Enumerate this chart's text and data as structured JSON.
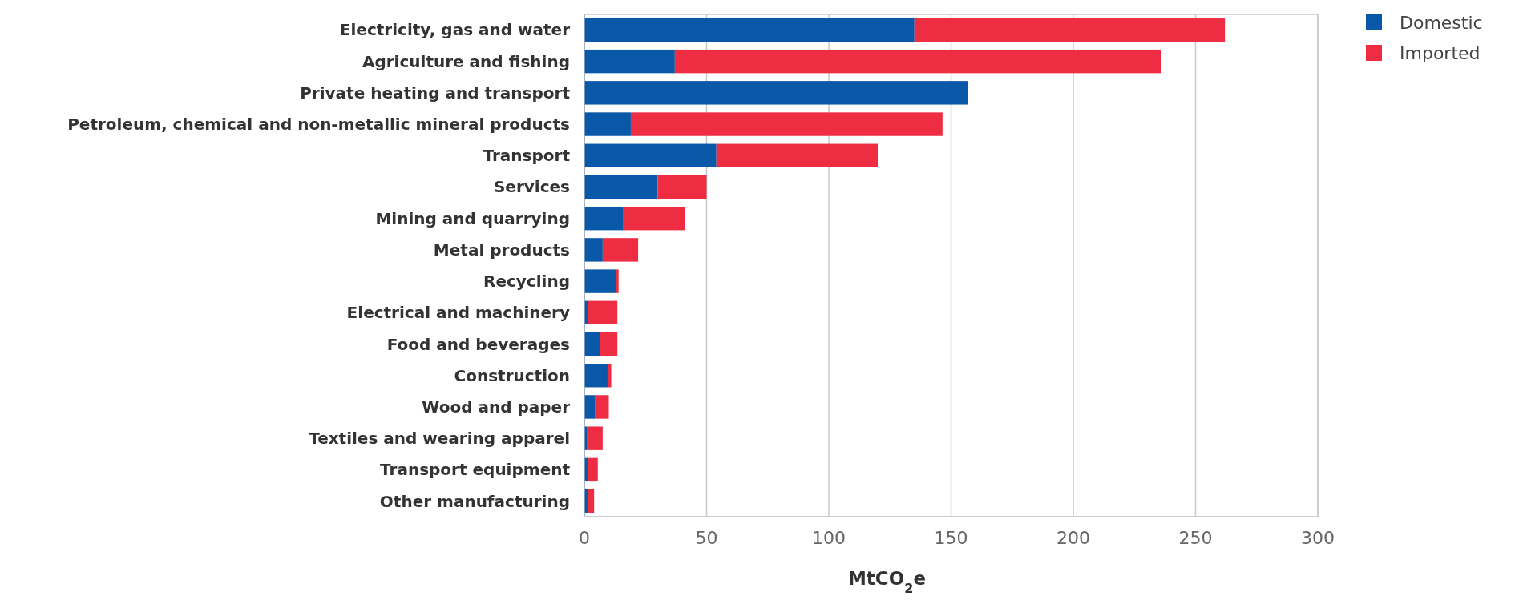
{
  "chart_data": {
    "type": "bar",
    "orientation": "horizontal",
    "stacked": true,
    "categories": [
      "Electricity, gas and water",
      "Agriculture and fishing",
      "Private heating and transport",
      "Petroleum, chemical and non-metallic mineral products",
      "Transport",
      "Services",
      "Mining and quarrying",
      "Metal products",
      "Recycling",
      "Electrical and machinery",
      "Food and beverages",
      "Construction",
      "Wood and paper",
      "Textiles and wearing apparel",
      "Transport equipment",
      "Other manufacturing"
    ],
    "series": [
      {
        "name": "Domestic",
        "color": "#0a58a8",
        "values": [
          135,
          37,
          157,
          19,
          54,
          30,
          16,
          7.5,
          13,
          1.5,
          6.5,
          9.5,
          4.5,
          1,
          1.5,
          1.5
        ]
      },
      {
        "name": "Imported",
        "color": "#ee2d43",
        "values": [
          127,
          199,
          0,
          127.5,
          66,
          20,
          25,
          14.5,
          1,
          12,
          7,
          1.5,
          5.5,
          6.5,
          4,
          2.5
        ]
      }
    ],
    "xlabel": "MtCO$_{2}$e",
    "xlim": [
      0,
      300
    ],
    "xticks": [
      0,
      50,
      100,
      150,
      200,
      250,
      300
    ],
    "grid": "x",
    "legend": "top right"
  }
}
